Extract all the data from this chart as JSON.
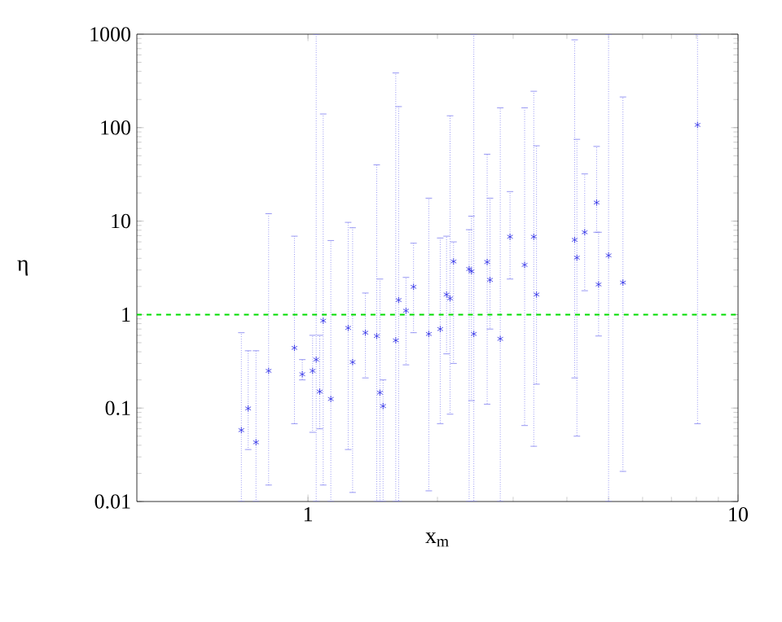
{
  "chart_data": {
    "type": "scatter",
    "xlabel": "x$_{m}$",
    "ylabel": "η",
    "log": "xy",
    "marker": "cross",
    "grid": false,
    "xlim": [
      0.4,
      10
    ],
    "xticks": [
      1,
      10
    ],
    "ylim": [
      0.01,
      1000
    ],
    "yticks": [
      0.01,
      0.1,
      1,
      10,
      100,
      1000
    ],
    "ref_lines": [
      {
        "axis": "y",
        "value": 1,
        "color": "#00dd00",
        "line_style": "dashed"
      }
    ],
    "series": [
      {
        "color": "#2a2ae6",
        "x": [
          0.7,
          0.726,
          0.757,
          0.81,
          0.93,
          0.97,
          1.025,
          1.045,
          1.065,
          1.085,
          1.13,
          1.24,
          1.27,
          1.36,
          1.445,
          1.47,
          1.495,
          1.6,
          1.625,
          1.69,
          1.76,
          1.91,
          2.03,
          2.1,
          2.14,
          2.18,
          2.37,
          2.4,
          2.43,
          2.61,
          2.65,
          2.8,
          2.95,
          3.19,
          3.35,
          3.4,
          4.17,
          4.22,
          4.4,
          4.69,
          4.74,
          5.0,
          5.4,
          8.05
        ],
        "values": [
          0.058,
          0.099,
          0.043,
          0.25,
          0.44,
          0.23,
          0.25,
          0.33,
          0.15,
          0.86,
          0.125,
          0.72,
          0.31,
          0.64,
          0.59,
          0.146,
          0.105,
          0.53,
          1.43,
          1.1,
          1.98,
          0.62,
          0.7,
          1.64,
          1.49,
          3.7,
          3.07,
          2.9,
          0.62,
          3.65,
          2.35,
          0.55,
          6.8,
          3.4,
          6.8,
          1.64,
          6.3,
          4.06,
          7.6,
          15.8,
          2.1,
          4.3,
          2.2,
          107
        ],
        "errors": [
          [
            0.01,
            0.64
          ],
          [
            0.036,
            0.41
          ],
          [
            0.01,
            0.41
          ],
          [
            0.015,
            12
          ],
          [
            0.068,
            6.9
          ],
          [
            0.2,
            0.33
          ],
          [
            0.055,
            0.6
          ],
          [
            0.01,
            1000
          ],
          [
            0.06,
            0.6
          ],
          [
            0.015,
            140
          ],
          [
            0.01,
            6.2
          ],
          [
            0.036,
            9.7
          ],
          [
            0.0125,
            8.5
          ],
          [
            0.21,
            1.7
          ],
          [
            0.01,
            40
          ],
          [
            0.01,
            2.4
          ],
          [
            0.01,
            0.2
          ],
          [
            0.01,
            385
          ],
          [
            0.01,
            168
          ],
          [
            0.29,
            2.5
          ],
          [
            0.64,
            5.8
          ],
          [
            0.013,
            17.6
          ],
          [
            0.068,
            6.6
          ],
          [
            0.38,
            6.9
          ],
          [
            0.086,
            134
          ],
          [
            0.3,
            6
          ],
          [
            0.01,
            8.1
          ],
          [
            0.12,
            11.3
          ],
          [
            0.01,
            1000
          ],
          [
            0.11,
            52
          ],
          [
            0.7,
            17.6
          ],
          [
            0.01,
            163
          ],
          [
            2.4,
            20.7
          ],
          [
            0.065,
            163
          ],
          [
            0.039,
            245
          ],
          [
            0.18,
            64
          ],
          [
            0.21,
            870
          ],
          [
            0.05,
            75
          ],
          [
            1.8,
            32
          ],
          [
            7.6,
            63
          ],
          [
            0.59,
            7.6
          ],
          [
            0.01,
            1000
          ],
          [
            0.021,
            213
          ],
          [
            0.068,
            1000
          ]
        ]
      }
    ]
  }
}
